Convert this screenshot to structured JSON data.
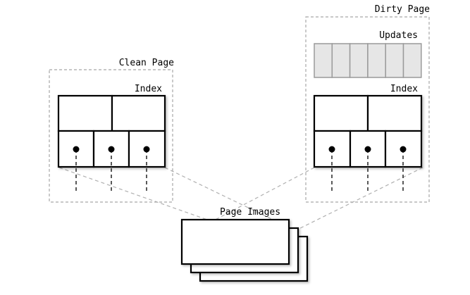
{
  "labels": {
    "clean_page": "Clean Page",
    "dirty_page": "Dirty Page",
    "index_clean": "Index",
    "index_dirty": "Index",
    "updates": "Updates",
    "page_images": "Page Images"
  }
}
